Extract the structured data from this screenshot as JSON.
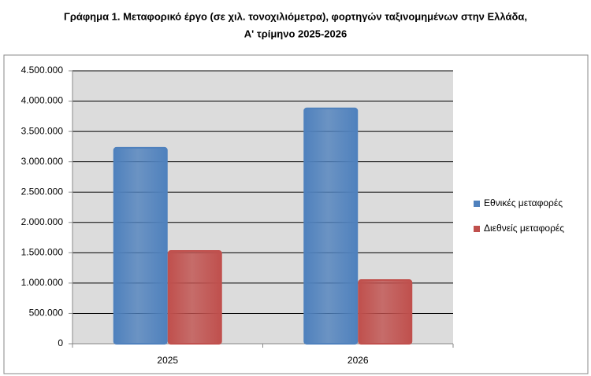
{
  "chart_data": {
    "type": "bar",
    "title": [
      "Γράφημα 1. Μεταφορικό έργο (σε χιλ. τονοχιλιόμετρα), φορτηγών ταξινομημένων στην Ελλάδα,",
      "Α' τρίμηνο 2025-2026"
    ],
    "categories": [
      "2025",
      "2026"
    ],
    "series": [
      {
        "name": "Εθνικές μεταφορές",
        "color": "#4f81bd",
        "values": [
          3230000,
          3880000
        ]
      },
      {
        "name": "Διεθνείς μεταφορές",
        "color": "#c0504d",
        "values": [
          1530000,
          1050000
        ]
      }
    ],
    "ylim": [
      0,
      4500000
    ],
    "yticks": [
      0,
      {
        "value": 500000,
        "label": "500.000"
      },
      {
        "value": 1000000,
        "label": "1.000.000"
      },
      {
        "value": 1500000,
        "label": "1.500.000"
      },
      {
        "value": 2000000,
        "label": "2.000.000"
      },
      {
        "value": 2500000,
        "label": "2.500.000"
      },
      {
        "value": 3000000,
        "label": "3.000.000"
      },
      {
        "value": 3500000,
        "label": "3.500.000"
      },
      {
        "value": 4000000,
        "label": "4.000.000"
      },
      {
        "value": 4500000,
        "label": "4.500.000"
      }
    ],
    "grid": true,
    "legend": "right"
  }
}
